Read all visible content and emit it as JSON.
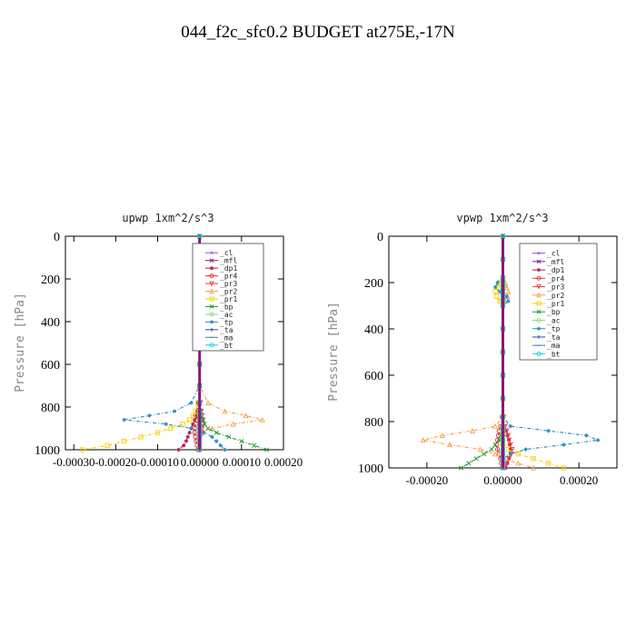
{
  "figure": {
    "title": "044_f2c_sfc0.2  BUDGET at275E,-17N"
  },
  "chart_data": [
    {
      "type": "line",
      "title": "upwp   1xm^2/s^3",
      "ylabel": "Pressure  [hPa]",
      "xlabel": "",
      "xlim": [
        -0.00032,
        0.0002
      ],
      "ylim": [
        1000,
        0
      ],
      "y_reversed": true,
      "xticks": [
        -0.0003,
        -0.0002,
        -0.0001,
        0.0,
        0.0001,
        0.0002
      ],
      "xtick_labels": [
        "-0.00030",
        "-0.00020",
        "-0.00010",
        "0.00000",
        "0.00010",
        "0.00020"
      ],
      "yticks": [
        0,
        200,
        400,
        600,
        800,
        1000
      ],
      "ytick_labels": [
        "0",
        "200",
        "400",
        "600",
        "800",
        "1000"
      ],
      "grid": false,
      "legend_position": "top-right",
      "y": [
        0,
        100,
        180,
        200,
        220,
        240,
        260,
        280,
        300,
        400,
        500,
        600,
        700,
        780,
        820,
        840,
        860,
        880,
        900,
        920,
        940,
        960,
        980,
        1000
      ],
      "series": [
        {
          "name": "_cl",
          "color": "#9b4fd1",
          "marker": "+",
          "x": [
            0,
            0,
            0,
            0,
            0,
            0,
            0,
            0,
            0,
            0,
            0,
            0,
            0,
            0,
            0,
            0,
            0,
            0,
            0,
            0,
            0,
            0,
            0,
            0
          ]
        },
        {
          "name": "_mfl",
          "color": "#7a1a8a",
          "marker": "x",
          "x": [
            0,
            0,
            0,
            0,
            0,
            0,
            0,
            0,
            0,
            0,
            0,
            0,
            0,
            0,
            0,
            0,
            0,
            0,
            0,
            0,
            0,
            0,
            0,
            0
          ]
        },
        {
          "name": "_dp1",
          "color": "#b0174d",
          "marker": "*",
          "x": [
            0,
            0,
            0,
            0,
            0,
            0,
            0,
            0,
            0,
            0,
            0,
            0,
            0,
            -4e-06,
            -6e-06,
            -1e-05,
            -1.2e-05,
            -1.6e-05,
            -2e-05,
            -2.4e-05,
            -2.8e-05,
            -3.2e-05,
            -3.8e-05,
            -5e-05
          ]
        },
        {
          "name": "_pr4",
          "color": "#e0332d",
          "marker": "o",
          "x": [
            0,
            0,
            0,
            0,
            0,
            0,
            0,
            0,
            0,
            0,
            0,
            0,
            0,
            -2e-06,
            -4e-06,
            -6e-06,
            -8e-06,
            -1e-05,
            -1.2e-05,
            -1.2e-05,
            -1e-05,
            -8e-06,
            -6e-06,
            -4e-06
          ]
        },
        {
          "name": "_pr3",
          "color": "#f03c3c",
          "marker": "v",
          "x": [
            0,
            0,
            0,
            0,
            0,
            0,
            0,
            0,
            0,
            0,
            0,
            0,
            0,
            2e-06,
            4e-06,
            6e-06,
            8e-06,
            8e-06,
            6e-06,
            4e-06,
            2e-06,
            0,
            0,
            0
          ]
        },
        {
          "name": "_pr2",
          "color": "#f4a24a",
          "marker": "^",
          "x": [
            0,
            0,
            0,
            -4e-06,
            -8e-06,
            -1.2e-05,
            -8e-06,
            -4e-06,
            0,
            0,
            0,
            0,
            0,
            2e-05,
            6e-05,
            0.00011,
            0.00015,
            8e-05,
            3e-05,
            5e-06,
            0,
            0,
            0,
            0
          ]
        },
        {
          "name": "_pr1",
          "color": "#f6d000",
          "marker": "s",
          "x": [
            0,
            0,
            0,
            -6e-06,
            -1e-05,
            -1.2e-05,
            -8e-06,
            -4e-06,
            0,
            0,
            0,
            0,
            0,
            -4e-06,
            -1e-05,
            -1.6e-05,
            -2.4e-05,
            -4e-05,
            -7e-05,
            -0.0001,
            -0.00014,
            -0.00018,
            -0.00022,
            -0.00028
          ]
        },
        {
          "name": "_bp",
          "color": "#1a9a2a",
          "marker": "x",
          "x": [
            0,
            0,
            0,
            0,
            0,
            0,
            0,
            0,
            0,
            0,
            0,
            0,
            0,
            0,
            2e-06,
            4e-06,
            8e-06,
            1.2e-05,
            2e-05,
            4e-05,
            7e-05,
            0.0001,
            0.00013,
            0.00016
          ]
        },
        {
          "name": "_ac",
          "color": "#7be07b",
          "marker": "o",
          "x": [
            0,
            0,
            0,
            0,
            0,
            0,
            0,
            0,
            0,
            0,
            0,
            0,
            0,
            0,
            0,
            0,
            0,
            0,
            0,
            0,
            0,
            0,
            0,
            0
          ]
        },
        {
          "name": "_tp",
          "color": "#2a8fb5",
          "marker": "*",
          "x": [
            0,
            0,
            0,
            6e-06,
            1e-05,
            1.4e-05,
            1e-05,
            4e-06,
            0,
            0,
            0,
            0,
            0,
            -2e-05,
            -6e-05,
            -0.00012,
            -0.00018,
            -8e-05,
            -2e-05,
            1e-05,
            3e-05,
            4e-05,
            5e-05,
            6e-05
          ]
        },
        {
          "name": "_ta",
          "color": "#1f4fb0",
          "marker": "+",
          "x": [
            0,
            0,
            0,
            0,
            0,
            0,
            0,
            0,
            0,
            0,
            0,
            0,
            0,
            0,
            0,
            0,
            0,
            0,
            0,
            0,
            0,
            0,
            0,
            0
          ]
        },
        {
          "name": "_ma",
          "color": "#3a7fa0",
          "marker": "-",
          "x": [
            0,
            0,
            0,
            0,
            0,
            0,
            0,
            0,
            0,
            0,
            0,
            0,
            0,
            0,
            0,
            0,
            0,
            0,
            0,
            0,
            0,
            0,
            0,
            0
          ]
        },
        {
          "name": "_bt",
          "color": "#19d1e0",
          "marker": "o",
          "x": [
            0,
            0,
            0,
            0,
            0,
            0,
            0,
            0,
            0,
            0,
            0,
            0,
            0,
            0,
            0,
            0,
            0,
            0,
            0,
            0,
            0,
            0,
            0,
            0
          ]
        }
      ]
    },
    {
      "type": "line",
      "title": "vpwp   1xm^2/s^3",
      "ylabel": "Pressure  [hPa]",
      "xlabel": "",
      "xlim": [
        -0.0003,
        0.0003
      ],
      "ylim": [
        1000,
        0
      ],
      "y_reversed": true,
      "xticks": [
        -0.0002,
        0.0,
        0.0002
      ],
      "xtick_labels": [
        "-0.00020",
        "0.00000",
        "0.00020"
      ],
      "yticks": [
        0,
        200,
        400,
        600,
        800,
        1000
      ],
      "ytick_labels": [
        "0",
        "200",
        "400",
        "600",
        "800",
        "1000"
      ],
      "grid": false,
      "legend_position": "top-right",
      "y": [
        0,
        100,
        180,
        200,
        220,
        240,
        260,
        280,
        300,
        400,
        500,
        600,
        700,
        780,
        820,
        840,
        860,
        880,
        900,
        920,
        940,
        960,
        980,
        1000
      ],
      "series": [
        {
          "name": "_cl",
          "color": "#9b4fd1",
          "marker": "+",
          "x": [
            0,
            0,
            0,
            0,
            0,
            0,
            0,
            0,
            0,
            0,
            0,
            0,
            0,
            0,
            0,
            0,
            0,
            0,
            0,
            0,
            0,
            0,
            0,
            0
          ]
        },
        {
          "name": "_mfl",
          "color": "#7a1a8a",
          "marker": "x",
          "x": [
            0,
            0,
            0,
            0,
            0,
            0,
            0,
            0,
            0,
            0,
            0,
            0,
            0,
            0,
            0,
            0,
            0,
            0,
            0,
            0,
            0,
            0,
            0,
            0
          ]
        },
        {
          "name": "_dp1",
          "color": "#b0174d",
          "marker": "*",
          "x": [
            0,
            0,
            0,
            0,
            0,
            0,
            0,
            0,
            0,
            0,
            0,
            0,
            0,
            2e-06,
            4e-06,
            8e-06,
            1.2e-05,
            1.6e-05,
            1.8e-05,
            2e-05,
            2e-05,
            1.6e-05,
            1.2e-05,
            8e-06
          ]
        },
        {
          "name": "_pr4",
          "color": "#e0332d",
          "marker": "o",
          "x": [
            0,
            0,
            0,
            0,
            0,
            0,
            0,
            0,
            0,
            0,
            0,
            0,
            0,
            -2e-06,
            -6e-06,
            -1e-05,
            -1.2e-05,
            -1.4e-05,
            -1.6e-05,
            -1.4e-05,
            -1e-05,
            -6e-06,
            -4e-06,
            -2e-06
          ]
        },
        {
          "name": "_pr3",
          "color": "#f03c3c",
          "marker": "v",
          "x": [
            0,
            0,
            0,
            0,
            0,
            0,
            0,
            0,
            0,
            0,
            0,
            0,
            0,
            2e-06,
            6e-06,
            1e-05,
            1.4e-05,
            1.6e-05,
            2e-05,
            2.4e-05,
            2.2e-05,
            1.6e-05,
            1e-05,
            4e-06
          ]
        },
        {
          "name": "_pr2",
          "color": "#f4a24a",
          "marker": "^",
          "x": [
            0,
            0,
            0,
            6e-06,
            1e-05,
            1.4e-05,
            1.2e-05,
            6e-06,
            0,
            0,
            0,
            0,
            0,
            0,
            -2e-05,
            -8e-05,
            -0.00016,
            -0.00021,
            -0.00014,
            -6e-05,
            -2e-05,
            0,
            4e-05,
            8e-05
          ]
        },
        {
          "name": "_pr1",
          "color": "#f6d000",
          "marker": "s",
          "x": [
            0,
            0,
            0,
            -8e-06,
            -1.4e-05,
            -2e-05,
            -1.6e-05,
            -8e-06,
            0,
            0,
            0,
            0,
            0,
            0,
            0,
            0,
            0,
            0,
            0,
            1e-05,
            4e-05,
            8e-05,
            0.00012,
            0.00016
          ]
        },
        {
          "name": "_bp",
          "color": "#1a9a2a",
          "marker": "x",
          "x": [
            0,
            0,
            0,
            0,
            0,
            0,
            0,
            0,
            0,
            0,
            0,
            0,
            0,
            0,
            0,
            0,
            -6e-06,
            -1e-05,
            -2e-05,
            -3e-05,
            -5e-05,
            -7e-05,
            -9e-05,
            -0.00011
          ]
        },
        {
          "name": "_ac",
          "color": "#7be07b",
          "marker": "o",
          "x": [
            0,
            0,
            0,
            0,
            0,
            0,
            0,
            0,
            0,
            0,
            0,
            0,
            0,
            0,
            0,
            0,
            0,
            0,
            0,
            0,
            0,
            0,
            0,
            0
          ]
        },
        {
          "name": "_tp",
          "color": "#2a8fb5",
          "marker": "*",
          "x": [
            0,
            0,
            0,
            -1.4e-05,
            -2e-05,
            -8e-06,
            1e-05,
            1.4e-05,
            0,
            0,
            0,
            0,
            0,
            0,
            2e-05,
            0.00012,
            0.00022,
            0.00025,
            0.00016,
            6e-05,
            2e-05,
            0,
            0,
            0
          ]
        },
        {
          "name": "_ta",
          "color": "#1f4fb0",
          "marker": "+",
          "x": [
            0,
            0,
            0,
            0,
            0,
            0,
            0,
            0,
            0,
            0,
            0,
            0,
            0,
            0,
            0,
            0,
            0,
            0,
            0,
            0,
            0,
            0,
            0,
            0
          ]
        },
        {
          "name": "_ma",
          "color": "#3a7fa0",
          "marker": "-",
          "x": [
            0,
            0,
            0,
            0,
            0,
            0,
            0,
            0,
            0,
            0,
            0,
            0,
            0,
            0,
            0,
            0,
            0,
            0,
            0,
            0,
            0,
            0,
            0,
            0
          ]
        },
        {
          "name": "_bt",
          "color": "#19d1e0",
          "marker": "o",
          "x": [
            0,
            0,
            0,
            0,
            0,
            0,
            0,
            0,
            0,
            0,
            0,
            0,
            0,
            0,
            0,
            0,
            0,
            0,
            0,
            0,
            0,
            0,
            0,
            0
          ]
        }
      ]
    }
  ]
}
